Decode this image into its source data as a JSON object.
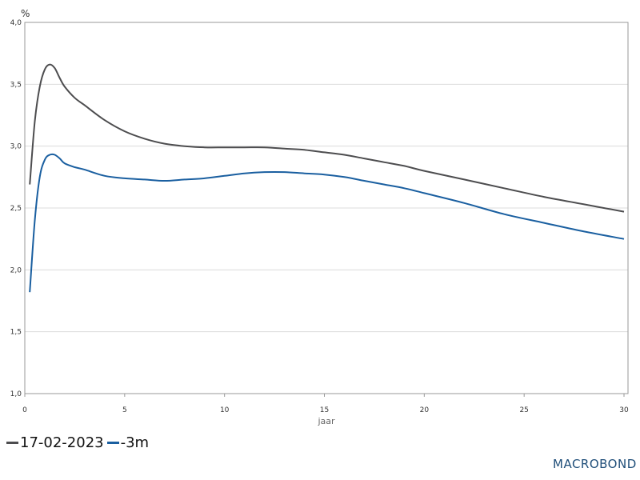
{
  "chart_data": {
    "type": "line",
    "title": "",
    "y_unit": "%",
    "xlabel": "jaar",
    "ylabel": "",
    "xlim": [
      0,
      30.2
    ],
    "ylim": [
      1.0,
      4.0
    ],
    "x_ticks": [
      0,
      5,
      10,
      15,
      20,
      25,
      30
    ],
    "y_ticks": [
      1.0,
      1.5,
      2.0,
      2.5,
      3.0,
      3.5,
      4.0
    ],
    "y_tick_labels": [
      "1,0",
      "1,5",
      "2,0",
      "2,5",
      "3,0",
      "3,5",
      "4,0"
    ],
    "grid": "horizontal",
    "legend_position": "bottom-left",
    "series": [
      {
        "name": "17-02-2023",
        "color": "#4d4d4f",
        "x": [
          0.25,
          0.5,
          0.75,
          1.0,
          1.25,
          1.5,
          1.75,
          2,
          2.5,
          3,
          4,
          5,
          6,
          7,
          8,
          9,
          10,
          11,
          12,
          13,
          14,
          15,
          16,
          17,
          18,
          19,
          20,
          22,
          24,
          26,
          28,
          30
        ],
        "y": [
          2.69,
          3.2,
          3.48,
          3.62,
          3.66,
          3.63,
          3.55,
          3.48,
          3.39,
          3.33,
          3.21,
          3.12,
          3.06,
          3.02,
          3.0,
          2.99,
          2.99,
          2.99,
          2.99,
          2.98,
          2.97,
          2.95,
          2.93,
          2.9,
          2.87,
          2.84,
          2.8,
          2.73,
          2.66,
          2.59,
          2.53,
          2.47
        ]
      },
      {
        "name": "-3m",
        "color": "#1a5fa0",
        "x": [
          0.25,
          0.5,
          0.75,
          1.0,
          1.25,
          1.5,
          1.75,
          2,
          2.5,
          3,
          4,
          5,
          6,
          7,
          8,
          9,
          10,
          11,
          12,
          13,
          14,
          15,
          16,
          17,
          18,
          19,
          20,
          22,
          24,
          26,
          28,
          30
        ],
        "y": [
          1.82,
          2.4,
          2.75,
          2.89,
          2.93,
          2.93,
          2.9,
          2.86,
          2.83,
          2.81,
          2.76,
          2.74,
          2.73,
          2.72,
          2.73,
          2.74,
          2.76,
          2.78,
          2.79,
          2.79,
          2.78,
          2.77,
          2.75,
          2.72,
          2.69,
          2.66,
          2.62,
          2.54,
          2.45,
          2.38,
          2.31,
          2.25
        ]
      }
    ]
  },
  "branding": {
    "logo_text": "MACROBOND"
  }
}
